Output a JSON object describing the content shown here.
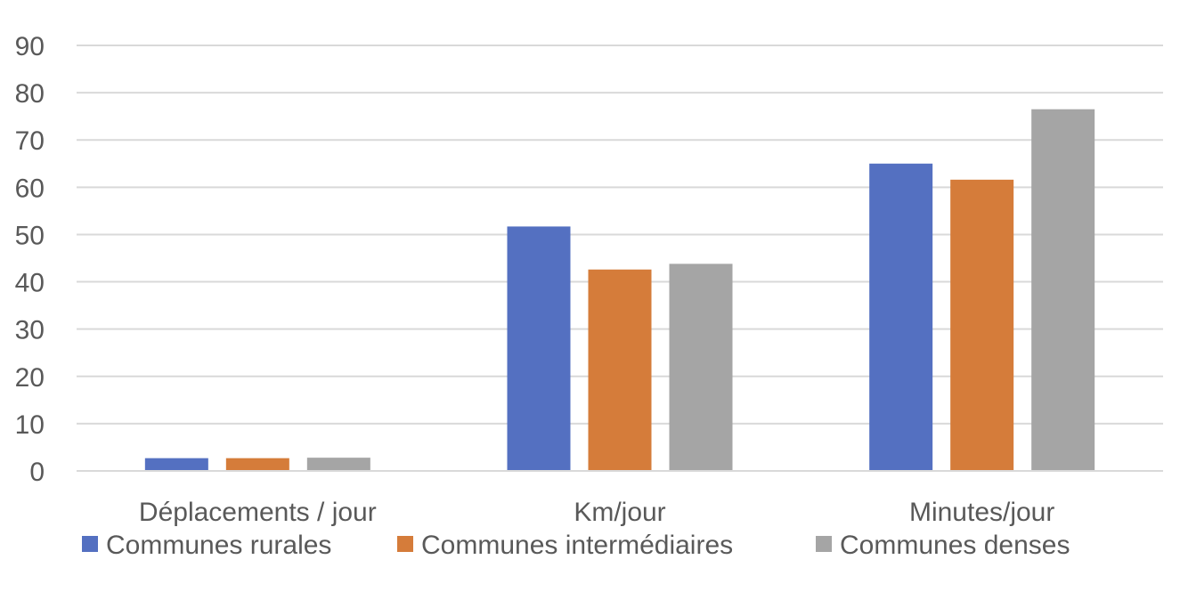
{
  "chart_data": {
    "type": "bar",
    "title": "",
    "xlabel": "",
    "ylabel": "",
    "categories": [
      "Déplacements / jour",
      "Km/jour",
      "Minutes/jour"
    ],
    "series": [
      {
        "name": "Communes rurales",
        "color": "#5470c1",
        "values": [
          2.7,
          51.7,
          65.0
        ]
      },
      {
        "name": "Communes intermédiaires",
        "color": "#d57c3a",
        "values": [
          2.7,
          42.6,
          61.6
        ]
      },
      {
        "name": "Communes denses",
        "color": "#a5a5a5",
        "values": [
          2.8,
          43.8,
          76.5
        ]
      }
    ],
    "ylim": [
      0,
      90
    ],
    "yticks": [
      "0",
      "10",
      "20",
      "30",
      "40",
      "50",
      "60",
      "70",
      "80",
      "90"
    ],
    "grid": true,
    "legend_position": "bottom"
  }
}
